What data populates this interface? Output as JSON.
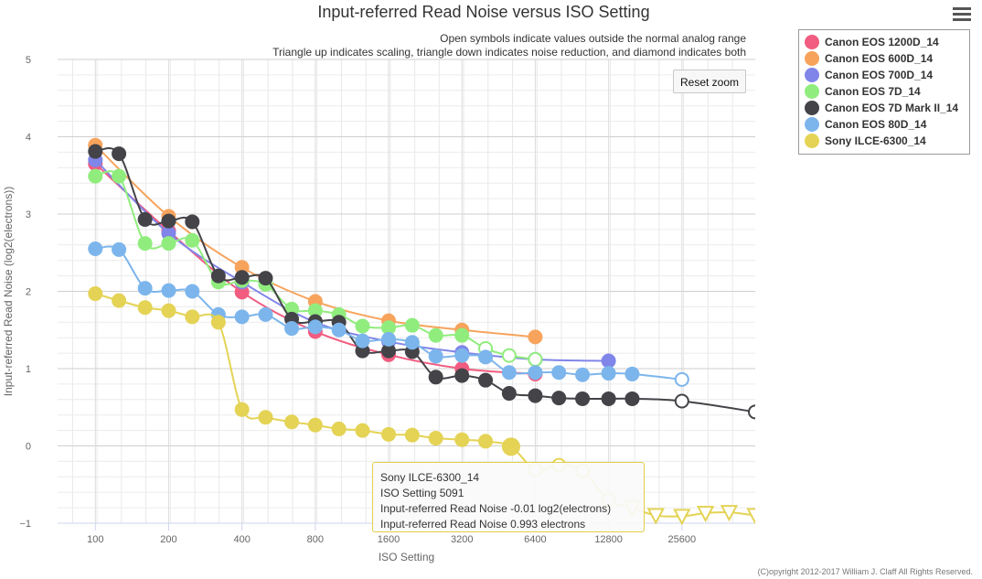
{
  "chart_data": {
    "type": "line",
    "title": "Input-referred Read Noise versus ISO Setting",
    "subtitle_lines": [
      "Open symbols indicate values outside the normal analog range",
      "Triangle up indicates scaling, triangle down indicates noise reduction, and diamond indicates both"
    ],
    "xlabel": "ISO Setting",
    "ylabel": "Input-referred Read Noise (log2(electrons))",
    "x_scale": "log2",
    "xlim": [
      70,
      51200
    ],
    "ylim": [
      -1,
      5
    ],
    "x_ticks": [
      100,
      200,
      400,
      800,
      1600,
      3200,
      6400,
      12800,
      25600
    ],
    "x_tick_labels": [
      "100",
      "200",
      "400",
      "800",
      "1600",
      "3200",
      "6400",
      "12800",
      "25600"
    ],
    "y_ticks": [
      -1,
      0,
      1,
      2,
      3,
      4,
      5
    ],
    "y_tick_labels": [
      "−1",
      "0",
      "1",
      "2",
      "3",
      "4",
      "5"
    ],
    "series": [
      {
        "name": "Canon EOS 1200D_14",
        "color": "#f15c80",
        "points": [
          [
            100,
            3.65
          ],
          [
            200,
            2.78
          ],
          [
            400,
            1.99
          ],
          [
            800,
            1.48
          ],
          [
            1600,
            1.18
          ],
          [
            3200,
            1.0
          ],
          [
            6400,
            0.93
          ]
        ]
      },
      {
        "name": "Canon EOS 600D_14",
        "color": "#f7a35c",
        "points": [
          [
            100,
            3.89
          ],
          [
            200,
            2.97
          ],
          [
            400,
            2.31
          ],
          [
            800,
            1.87
          ],
          [
            1600,
            1.62
          ],
          [
            3200,
            1.5
          ],
          [
            6400,
            1.41
          ]
        ]
      },
      {
        "name": "Canon EOS 700D_14",
        "color": "#8085e9",
        "points": [
          [
            100,
            3.7
          ],
          [
            200,
            2.75
          ],
          [
            400,
            2.12
          ],
          [
            800,
            1.6
          ],
          [
            1600,
            1.35
          ],
          [
            3200,
            1.21
          ],
          [
            6400,
            1.12
          ],
          [
            12800,
            1.1
          ]
        ]
      },
      {
        "name": "Canon EOS 7D_14",
        "color": "#90ed7d",
        "points": [
          [
            100,
            3.49
          ],
          [
            125,
            3.49
          ],
          [
            160,
            2.62
          ],
          [
            200,
            2.62
          ],
          [
            250,
            2.66
          ],
          [
            320,
            2.12
          ],
          [
            400,
            2.14
          ],
          [
            500,
            2.09
          ],
          [
            640,
            1.77
          ],
          [
            800,
            1.75
          ],
          [
            1000,
            1.7
          ],
          [
            1250,
            1.55
          ],
          [
            1600,
            1.53
          ],
          [
            2000,
            1.56
          ],
          [
            2500,
            1.43
          ],
          [
            3200,
            1.43
          ],
          [
            4000,
            1.26,
            "open"
          ],
          [
            5000,
            1.17,
            "open"
          ],
          [
            6400,
            1.12,
            "open"
          ]
        ]
      },
      {
        "name": "Canon EOS 7D Mark II_14",
        "color": "#434348",
        "points": [
          [
            100,
            3.81
          ],
          [
            125,
            3.78
          ],
          [
            160,
            2.93
          ],
          [
            200,
            2.91
          ],
          [
            250,
            2.9
          ],
          [
            320,
            2.2
          ],
          [
            400,
            2.18
          ],
          [
            500,
            2.17
          ],
          [
            640,
            1.64
          ],
          [
            800,
            1.61
          ],
          [
            1000,
            1.6
          ],
          [
            1250,
            1.23
          ],
          [
            1600,
            1.23
          ],
          [
            2000,
            1.22
          ],
          [
            2500,
            0.89
          ],
          [
            3200,
            0.91
          ],
          [
            4000,
            0.85
          ],
          [
            5000,
            0.68
          ],
          [
            6400,
            0.65
          ],
          [
            8000,
            0.62
          ],
          [
            10000,
            0.61
          ],
          [
            12800,
            0.61
          ],
          [
            16000,
            0.61
          ],
          [
            25600,
            0.58,
            "open"
          ],
          [
            51200,
            0.44,
            "open"
          ]
        ]
      },
      {
        "name": "Canon EOS 80D_14",
        "color": "#7cb5ec",
        "points": [
          [
            100,
            2.55
          ],
          [
            125,
            2.54
          ],
          [
            160,
            2.04
          ],
          [
            200,
            2.01
          ],
          [
            250,
            2.0
          ],
          [
            320,
            1.7
          ],
          [
            400,
            1.67
          ],
          [
            500,
            1.7
          ],
          [
            640,
            1.52
          ],
          [
            800,
            1.54
          ],
          [
            1000,
            1.5
          ],
          [
            1250,
            1.36
          ],
          [
            1600,
            1.38
          ],
          [
            2000,
            1.34
          ],
          [
            2500,
            1.16
          ],
          [
            3200,
            1.17
          ],
          [
            4000,
            1.15
          ],
          [
            5000,
            0.95
          ],
          [
            6400,
            0.95
          ],
          [
            8000,
            0.95
          ],
          [
            10000,
            0.92
          ],
          [
            12800,
            0.94
          ],
          [
            16000,
            0.93
          ],
          [
            25600,
            0.86,
            "open"
          ]
        ]
      },
      {
        "name": "Sony ILCE-6300_14",
        "color": "#e4d354",
        "points": [
          [
            100,
            1.97
          ],
          [
            125,
            1.88
          ],
          [
            160,
            1.79
          ],
          [
            200,
            1.75
          ],
          [
            250,
            1.67
          ],
          [
            320,
            1.6
          ],
          [
            400,
            0.47
          ],
          [
            500,
            0.37
          ],
          [
            640,
            0.31
          ],
          [
            800,
            0.27
          ],
          [
            1000,
            0.22
          ],
          [
            1250,
            0.2
          ],
          [
            1600,
            0.15
          ],
          [
            2000,
            0.14
          ],
          [
            2500,
            0.1
          ],
          [
            3200,
            0.08
          ],
          [
            4000,
            0.06
          ],
          [
            5091,
            -0.01
          ],
          [
            6400,
            -0.31,
            "open"
          ],
          [
            8000,
            -0.25,
            "open"
          ],
          [
            10000,
            -0.32,
            "open"
          ],
          [
            12800,
            -0.7,
            "open"
          ],
          [
            16000,
            -0.8,
            "down"
          ],
          [
            20000,
            -0.9,
            "down"
          ],
          [
            25600,
            -0.91,
            "down"
          ],
          [
            32000,
            -0.87,
            "down"
          ],
          [
            40000,
            -0.86,
            "down"
          ],
          [
            51200,
            -0.9,
            "down"
          ]
        ]
      }
    ]
  },
  "reset_zoom_label": "Reset zoom",
  "tooltip": {
    "series": "Sony ILCE-6300_14",
    "iso_line": "ISO Setting 5091",
    "noise_log2_line": "Input-referred Read Noise -0.01 log2(electrons)",
    "noise_e_line": "Input-referred Read Noise 0.993 electrons"
  },
  "copyright": "(C)opyright 2012-2017 William J. Claff All Rights Reserved."
}
